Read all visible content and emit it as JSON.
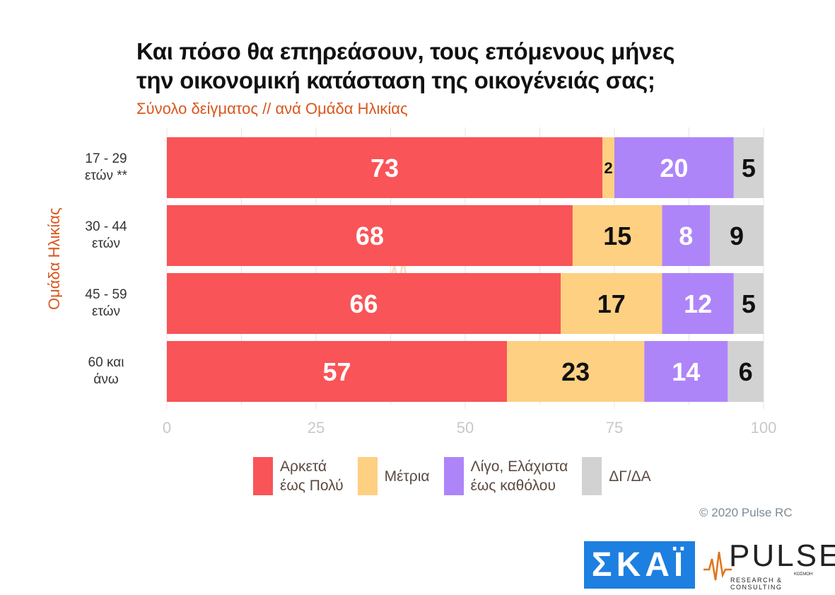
{
  "title_line1": "Και πόσο θα επηρεάσουν, τους επόμενους μήνες",
  "title_line2": "την οικονομική κατάσταση της οικογένειάς σας;",
  "subtitle": "Σύνολο δείγματος // ανά Ομάδα Ηλικίας",
  "y_group_label": "Ομάδα Ηλικίας",
  "copyright": "© 2020 Pulse RC",
  "logos": {
    "skat": "ΣΚΑΪ",
    "pulse": "PULSE",
    "pulse_sub": "RESEARCH & CONSULTING",
    "pulse_kosmos": "ΚΟΣΜΟΗ"
  },
  "legend": [
    {
      "line1": "Αρκετά",
      "line2": "έως Πολύ",
      "color": "#f95457"
    },
    {
      "line1": "Μέτρια",
      "line2": "",
      "color": "#fdd082"
    },
    {
      "line1": "Λίγο, Ελάχιστα",
      "line2": "έως καθόλου",
      "color": "#ae85f9"
    },
    {
      "line1": "ΔΓ/ΔΑ",
      "line2": "",
      "color": "#d2d2d2"
    }
  ],
  "chart_data": {
    "type": "bar",
    "orientation": "horizontal",
    "stacked": true,
    "categories": [
      [
        "17 - 29",
        "ετών **"
      ],
      [
        "30 - 44",
        "ετών"
      ],
      [
        "45 - 59",
        "ετών"
      ],
      [
        "60 και",
        "άνω"
      ]
    ],
    "series": [
      {
        "name": "Αρκετά έως Πολύ",
        "color": "#f95457",
        "label_color": "#ffffff",
        "values": [
          73,
          68,
          66,
          57
        ]
      },
      {
        "name": "Μέτρια",
        "color": "#fdd082",
        "label_color": "#111111",
        "values": [
          2,
          15,
          17,
          23
        ]
      },
      {
        "name": "Λίγο, Ελάχιστα έως καθόλου",
        "color": "#ae85f9",
        "label_color": "#ffffff",
        "values": [
          20,
          8,
          12,
          14
        ]
      },
      {
        "name": "ΔΓ/ΔΑ",
        "color": "#d2d2d2",
        "label_color": "#111111",
        "values": [
          5,
          9,
          5,
          6
        ]
      }
    ],
    "xlim": [
      0,
      100
    ],
    "xticks": [
      0,
      25,
      50,
      75,
      100
    ],
    "grid": true,
    "legend_position": "bottom"
  }
}
